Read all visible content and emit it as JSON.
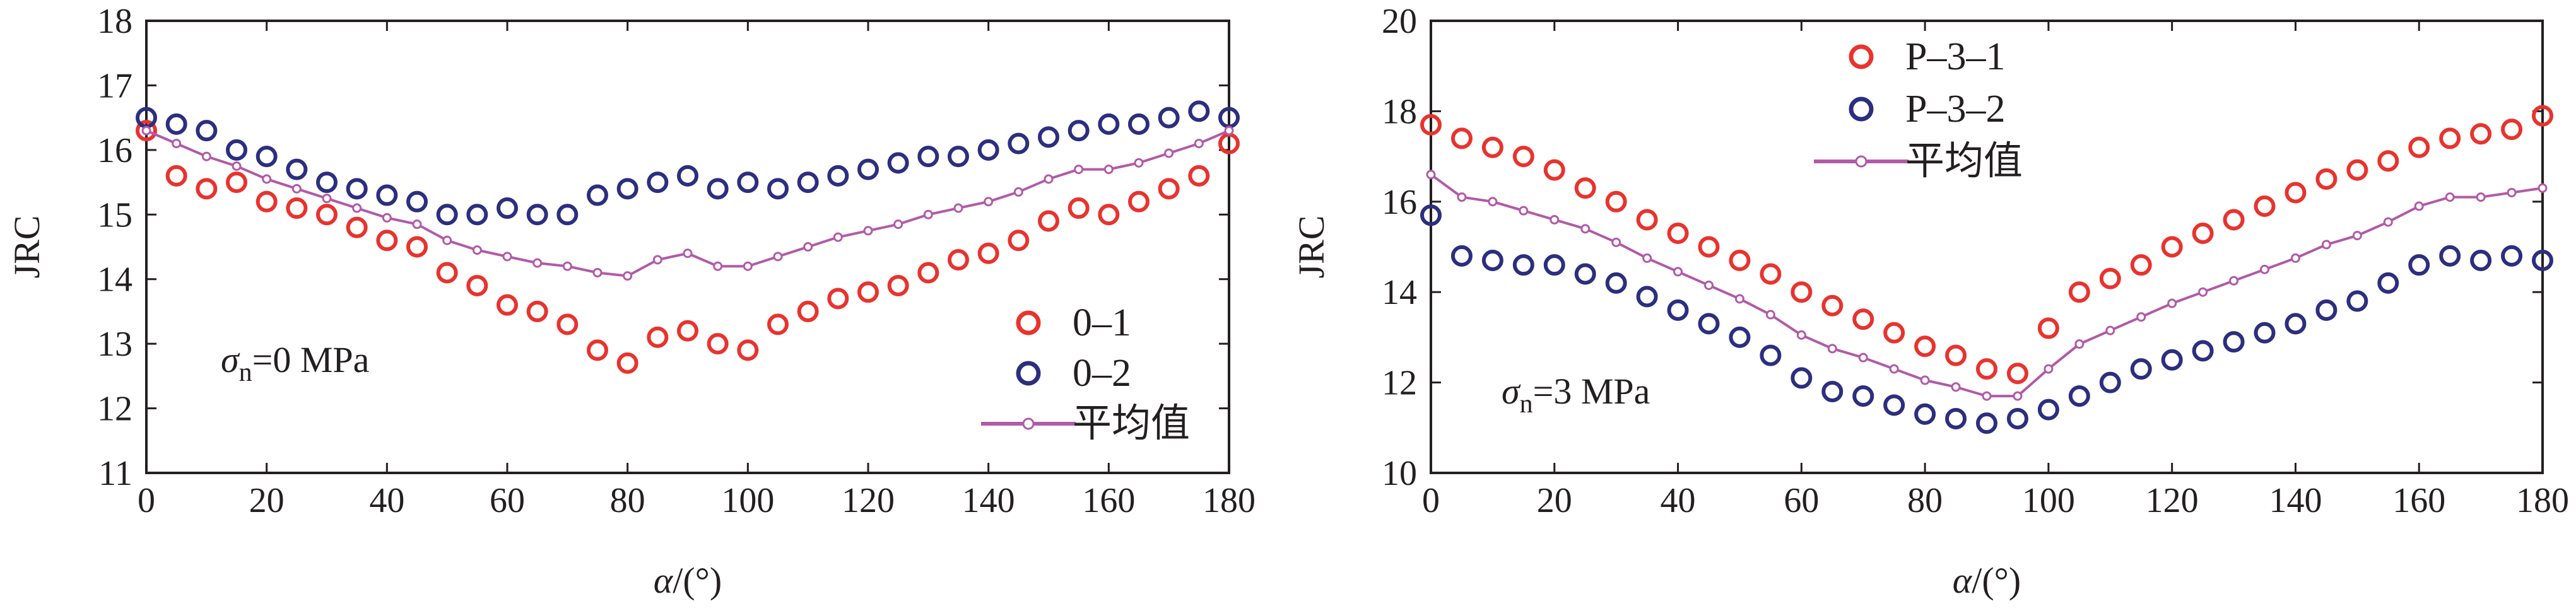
{
  "chart_data": [
    {
      "type": "scatter",
      "xlabel_italic": "α",
      "xlabel_unit": "/(°)",
      "ylabel": "JRC",
      "xlim": [
        0,
        180
      ],
      "ylim": [
        11,
        18
      ],
      "xticks": [
        "0",
        "20",
        "40",
        "60",
        "80",
        "100",
        "120",
        "140",
        "160",
        "180"
      ],
      "yticks": [
        "11",
        "12",
        "13",
        "14",
        "15",
        "16",
        "17",
        "18"
      ],
      "annotation": {
        "symbol": "σ",
        "sub": "n",
        "text": "=0 MPa"
      },
      "legend_position": "bottom-right",
      "series": [
        {
          "name": "0–1",
          "color": "#e8332e",
          "marker": "circle",
          "x": [
            0,
            5,
            10,
            15,
            20,
            25,
            30,
            35,
            40,
            45,
            50,
            55,
            60,
            65,
            70,
            75,
            80,
            85,
            90,
            95,
            100,
            105,
            110,
            115,
            120,
            125,
            130,
            135,
            140,
            145,
            150,
            155,
            160,
            165,
            170,
            175,
            180
          ],
          "y": [
            16.3,
            15.6,
            15.4,
            15.5,
            15.2,
            15.1,
            15.0,
            14.8,
            14.6,
            14.5,
            14.1,
            13.9,
            13.6,
            13.5,
            13.3,
            12.9,
            12.7,
            13.1,
            13.2,
            13.0,
            12.9,
            13.3,
            13.5,
            13.7,
            13.8,
            13.9,
            14.1,
            14.3,
            14.4,
            14.6,
            14.9,
            15.1,
            15.0,
            15.2,
            15.4,
            15.6,
            16.1
          ]
        },
        {
          "name": "0–2",
          "color": "#2c2e7e",
          "marker": "circle",
          "x": [
            0,
            5,
            10,
            15,
            20,
            25,
            30,
            35,
            40,
            45,
            50,
            55,
            60,
            65,
            70,
            75,
            80,
            85,
            90,
            95,
            100,
            105,
            110,
            115,
            120,
            125,
            130,
            135,
            140,
            145,
            150,
            155,
            160,
            165,
            170,
            175,
            180
          ],
          "y": [
            16.5,
            16.4,
            16.3,
            16.0,
            15.9,
            15.7,
            15.5,
            15.4,
            15.3,
            15.2,
            15.0,
            15.0,
            15.1,
            15.0,
            15.0,
            15.3,
            15.4,
            15.5,
            15.6,
            15.4,
            15.5,
            15.4,
            15.5,
            15.6,
            15.7,
            15.8,
            15.9,
            15.9,
            16.0,
            16.1,
            16.2,
            16.3,
            16.4,
            16.4,
            16.5,
            16.6,
            16.5
          ]
        },
        {
          "name": "平均值",
          "color": "#b15aa8",
          "marker": "line-dot",
          "x": [
            0,
            5,
            10,
            15,
            20,
            25,
            30,
            35,
            40,
            45,
            50,
            55,
            60,
            65,
            70,
            75,
            80,
            85,
            90,
            95,
            100,
            105,
            110,
            115,
            120,
            125,
            130,
            135,
            140,
            145,
            150,
            155,
            160,
            165,
            170,
            175,
            180
          ],
          "y": [
            16.3,
            16.1,
            15.9,
            15.75,
            15.55,
            15.4,
            15.25,
            15.1,
            14.95,
            14.85,
            14.6,
            14.45,
            14.35,
            14.25,
            14.2,
            14.1,
            14.05,
            14.3,
            14.4,
            14.2,
            14.2,
            14.35,
            14.5,
            14.65,
            14.75,
            14.85,
            15.0,
            15.1,
            15.2,
            15.35,
            15.55,
            15.7,
            15.7,
            15.8,
            15.95,
            16.1,
            16.3
          ]
        }
      ]
    },
    {
      "type": "scatter",
      "xlabel_italic": "α",
      "xlabel_unit": "/(°)",
      "ylabel": "JRC",
      "xlim": [
        0,
        180
      ],
      "ylim": [
        10,
        20
      ],
      "xticks": [
        "0",
        "20",
        "40",
        "60",
        "80",
        "100",
        "120",
        "140",
        "160",
        "180"
      ],
      "yticks": [
        "10",
        "12",
        "14",
        "16",
        "18",
        "20"
      ],
      "annotation": {
        "symbol": "σ",
        "sub": "n",
        "text": "=3 MPa"
      },
      "legend_position": "top-center",
      "series": [
        {
          "name": "P–3–1",
          "color": "#e8332e",
          "marker": "circle",
          "x": [
            0,
            5,
            10,
            15,
            20,
            25,
            30,
            35,
            40,
            45,
            50,
            55,
            60,
            65,
            70,
            75,
            80,
            85,
            90,
            95,
            100,
            105,
            110,
            115,
            120,
            125,
            130,
            135,
            140,
            145,
            150,
            155,
            160,
            165,
            170,
            175,
            180
          ],
          "y": [
            17.7,
            17.4,
            17.2,
            17.0,
            16.7,
            16.3,
            16.0,
            15.6,
            15.3,
            15.0,
            14.7,
            14.4,
            14.0,
            13.7,
            13.4,
            13.1,
            12.8,
            12.6,
            12.3,
            12.2,
            13.2,
            14.0,
            14.3,
            14.6,
            15.0,
            15.3,
            15.6,
            15.9,
            16.2,
            16.5,
            16.7,
            16.9,
            17.2,
            17.4,
            17.5,
            17.6,
            17.9
          ]
        },
        {
          "name": "P–3–2",
          "color": "#2c2e7e",
          "marker": "circle",
          "x": [
            0,
            5,
            10,
            15,
            20,
            25,
            30,
            35,
            40,
            45,
            50,
            55,
            60,
            65,
            70,
            75,
            80,
            85,
            90,
            95,
            100,
            105,
            110,
            115,
            120,
            125,
            130,
            135,
            140,
            145,
            150,
            155,
            160,
            165,
            170,
            175,
            180
          ],
          "y": [
            15.7,
            14.8,
            14.7,
            14.6,
            14.6,
            14.4,
            14.2,
            13.9,
            13.6,
            13.3,
            13.0,
            12.6,
            12.1,
            11.8,
            11.7,
            11.5,
            11.3,
            11.2,
            11.1,
            11.2,
            11.4,
            11.7,
            12.0,
            12.3,
            12.5,
            12.7,
            12.9,
            13.1,
            13.3,
            13.6,
            13.8,
            14.2,
            14.6,
            14.8,
            14.7,
            14.8,
            14.7
          ]
        },
        {
          "name": "平均值",
          "color": "#b15aa8",
          "marker": "line-dot",
          "x": [
            0,
            5,
            10,
            15,
            20,
            25,
            30,
            35,
            40,
            45,
            50,
            55,
            60,
            65,
            70,
            75,
            80,
            85,
            90,
            95,
            100,
            105,
            110,
            115,
            120,
            125,
            130,
            135,
            140,
            145,
            150,
            155,
            160,
            165,
            170,
            175,
            180
          ],
          "y": [
            16.6,
            16.1,
            16.0,
            15.8,
            15.6,
            15.4,
            15.1,
            14.75,
            14.45,
            14.15,
            13.85,
            13.5,
            13.05,
            12.75,
            12.55,
            12.3,
            12.05,
            11.9,
            11.7,
            11.7,
            12.3,
            12.85,
            13.15,
            13.45,
            13.75,
            14.0,
            14.25,
            14.5,
            14.75,
            15.05,
            15.25,
            15.55,
            15.9,
            16.1,
            16.1,
            16.2,
            16.3
          ]
        }
      ]
    }
  ]
}
